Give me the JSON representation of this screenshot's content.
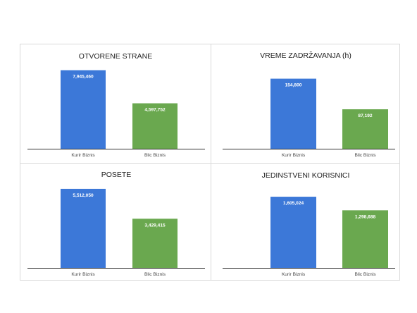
{
  "colors": {
    "kurir": "#3c78d8",
    "blic": "#6aa84f"
  },
  "chart_data": [
    {
      "type": "bar",
      "title": "OTVORENE STRANE",
      "categories": [
        "Kurir Biznis",
        "Blic Biznis"
      ],
      "values": [
        7945460,
        4597752
      ],
      "labels": [
        "7,945,460",
        "4,597,752"
      ],
      "ylim": [
        0,
        8700000
      ]
    },
    {
      "type": "bar",
      "title": "VREME ZADRŽAVANJA (h)",
      "categories": [
        "Kurir Biznis",
        "Blic Biznis"
      ],
      "values": [
        154800,
        87192
      ],
      "labels": [
        "154,800",
        "87,192"
      ],
      "ylim": [
        0,
        190000
      ]
    },
    {
      "type": "bar",
      "title": "POSETE",
      "categories": [
        "Kurir Biznis",
        "Blic Biznis"
      ],
      "values": [
        5512050,
        3429415
      ],
      "labels": [
        "5,512,050",
        "3,429,415"
      ],
      "ylim": [
        0,
        6000000
      ]
    },
    {
      "type": "bar",
      "title": "JEDINSTVENI KORISNICI",
      "categories": [
        "Kurir Biznis",
        "Blic Biznis"
      ],
      "values": [
        1605024,
        1298688
      ],
      "labels": [
        "1,605,024",
        "1,298,688"
      ],
      "ylim": [
        0,
        1940000
      ]
    }
  ]
}
